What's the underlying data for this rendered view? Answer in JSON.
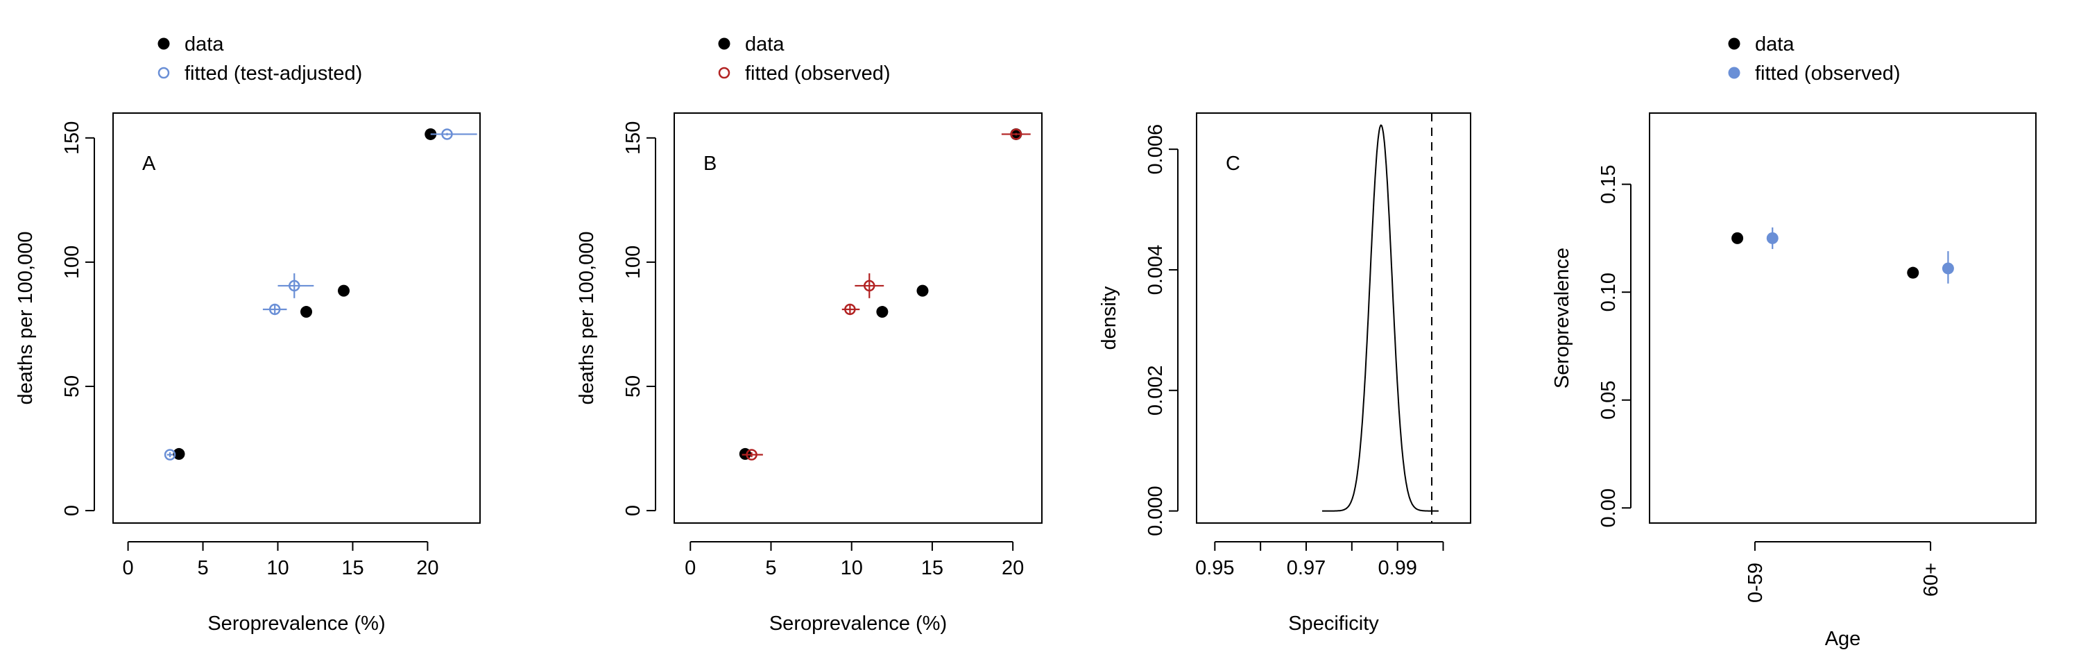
{
  "chart_data": [
    {
      "type": "scatter",
      "panel_letter": "A",
      "xlabel": "Seroprevalence (%)",
      "ylabel": "deaths per 100,000",
      "xlim": [
        -1,
        23.5
      ],
      "ylim": [
        -5,
        160
      ],
      "xticks": [
        0,
        5,
        10,
        15,
        20
      ],
      "yticks": [
        0,
        50,
        100,
        150
      ],
      "legend": {
        "position": "top-left",
        "entries": [
          {
            "label": "data",
            "marker": "filled",
            "color": "#000000"
          },
          {
            "label": "fitted (test-adjusted)",
            "marker": "open",
            "color": "#6A8FD6"
          }
        ]
      },
      "series": [
        {
          "name": "data",
          "marker": "filled",
          "color": "#000000",
          "points": [
            {
              "x": 3.4,
              "y": 22.8
            },
            {
              "x": 11.9,
              "y": 80
            },
            {
              "x": 14.4,
              "y": 88.5
            },
            {
              "x": 20.2,
              "y": 151.5
            }
          ]
        },
        {
          "name": "fitted (test-adjusted)",
          "marker": "open",
          "color": "#6A8FD6",
          "points": [
            {
              "x": 2.8,
              "y": 22.5,
              "xerr": [
                2.6,
                3.0
              ],
              "yerr": [
                21.5,
                23.5
              ]
            },
            {
              "x": 9.8,
              "y": 81,
              "xerr": [
                9.0,
                10.6
              ],
              "yerr": [
                79,
                83
              ]
            },
            {
              "x": 11.1,
              "y": 90.5,
              "xerr": [
                10.0,
                12.4
              ],
              "yerr": [
                85.5,
                95.5
              ]
            },
            {
              "x": 21.3,
              "y": 151.5,
              "xerr": [
                20.2,
                23.3
              ],
              "yerr": [
                151,
                152
              ]
            }
          ]
        }
      ]
    },
    {
      "type": "scatter",
      "panel_letter": "B",
      "xlabel": "Seroprevalence (%)",
      "ylabel": "deaths per 100,000",
      "xlim": [
        -1,
        21.8
      ],
      "ylim": [
        -5,
        160
      ],
      "xticks": [
        0,
        5,
        10,
        15,
        20
      ],
      "yticks": [
        0,
        50,
        100,
        150
      ],
      "legend": {
        "position": "top-left",
        "entries": [
          {
            "label": "data",
            "marker": "filled",
            "color": "#000000"
          },
          {
            "label": "fitted (observed)",
            "marker": "open",
            "color": "#B22222"
          }
        ]
      },
      "series": [
        {
          "name": "data",
          "marker": "filled",
          "color": "#000000",
          "points": [
            {
              "x": 3.4,
              "y": 22.8
            },
            {
              "x": 11.9,
              "y": 80
            },
            {
              "x": 14.4,
              "y": 88.5
            },
            {
              "x": 20.2,
              "y": 151.5
            }
          ]
        },
        {
          "name": "fitted (observed)",
          "marker": "open",
          "color": "#B22222",
          "points": [
            {
              "x": 3.8,
              "y": 22.5,
              "xerr": [
                3.2,
                4.5
              ],
              "yerr": [
                21.5,
                23.5
              ]
            },
            {
              "x": 9.9,
              "y": 81,
              "xerr": [
                9.4,
                10.5
              ],
              "yerr": [
                79,
                83
              ]
            },
            {
              "x": 11.1,
              "y": 90.5,
              "xerr": [
                10.2,
                12.0
              ],
              "yerr": [
                85.5,
                95.5
              ]
            },
            {
              "x": 20.2,
              "y": 151.5,
              "xerr": [
                19.3,
                21.1
              ],
              "yerr": [
                151,
                152
              ]
            }
          ]
        }
      ]
    },
    {
      "type": "line",
      "panel_letter": "C",
      "xlabel": "Specificity",
      "ylabel": "density",
      "xlim": [
        0.946,
        1.006
      ],
      "ylim": [
        -0.0002,
        0.0066
      ],
      "xticks": [
        0.95,
        0.96,
        0.97,
        0.98,
        0.99,
        1.0
      ],
      "xtick_labels": [
        "0.95",
        "",
        "0.97",
        "",
        "0.99",
        ""
      ],
      "yticks": [
        0.0,
        0.002,
        0.004,
        0.006
      ],
      "ytick_labels": [
        "0.000",
        "0.002",
        "0.004",
        "0.006"
      ],
      "density_curve": {
        "mean": 0.9864,
        "sd": 0.0024,
        "peak": 0.0064,
        "from": 0.9735,
        "to": 0.999
      },
      "reference_line": {
        "x": 0.9975,
        "style": "dashed"
      }
    },
    {
      "type": "scatter",
      "xlabel": "Age",
      "ylabel": "Seroprevalence",
      "xlim": [
        0.4,
        2.6
      ],
      "ylim": [
        -0.007,
        0.183
      ],
      "categories": [
        "0-59",
        "60+"
      ],
      "category_positions": [
        1,
        2
      ],
      "yticks": [
        0.0,
        0.05,
        0.1,
        0.15
      ],
      "ytick_labels": [
        "0.00",
        "0.05",
        "0.10",
        "0.15"
      ],
      "legend": {
        "position": "top-center",
        "entries": [
          {
            "label": "data",
            "marker": "filled",
            "color": "#000000"
          },
          {
            "label": "fitted (observed)",
            "marker": "filled",
            "color": "#6A8FD6"
          }
        ]
      },
      "series": [
        {
          "name": "data",
          "marker": "filled",
          "color": "#000000",
          "points": [
            {
              "x": 0.9,
              "y": 0.125
            },
            {
              "x": 1.9,
              "y": 0.109
            }
          ]
        },
        {
          "name": "fitted (observed)",
          "marker": "filled",
          "color": "#6A8FD6",
          "points": [
            {
              "x": 1.1,
              "y": 0.125,
              "yerr": [
                0.12,
                0.13
              ]
            },
            {
              "x": 2.1,
              "y": 0.111,
              "yerr": [
                0.104,
                0.119
              ]
            }
          ]
        }
      ]
    }
  ]
}
